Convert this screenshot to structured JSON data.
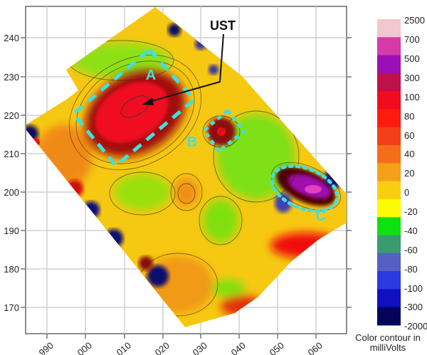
{
  "chart_data": {
    "type": "heatmap",
    "subtype": "filled contour map",
    "title": "",
    "xlabel": "",
    "ylabel": "",
    "x_ticks": [
      "990",
      "000",
      "010",
      "020",
      "030",
      "040",
      "050",
      "060"
    ],
    "y_ticks": [
      "240",
      "230",
      "220",
      "210",
      "200",
      "190",
      "180",
      "170"
    ],
    "ylim": [
      165,
      246
    ],
    "grid": true,
    "colorbar": {
      "title": "Color contour in milliVolts",
      "levels": [
        "2500",
        "700",
        "500",
        "300",
        "100",
        "80",
        "60",
        "40",
        "20",
        "0",
        "-20",
        "-40",
        "-60",
        "-80",
        "-100",
        "-300",
        "-2000"
      ],
      "colors": [
        "#f2c7d0",
        "#d63aa8",
        "#9b10b5",
        "#c0104a",
        "#f20a20",
        "#ff1a10",
        "#f4401a",
        "#f46e18",
        "#f5a018",
        "#f7cf10",
        "#fafa00",
        "#10e010",
        "#3a9a70",
        "#5560c0",
        "#2a3ae0",
        "#1010c0",
        "#04045a"
      ],
      "placement": "right"
    },
    "annotations": {
      "ust": "UST",
      "a": "A",
      "b": "B",
      "c": "C"
    },
    "anomalies": [
      {
        "label": "A",
        "type": "positive",
        "peak_mv": "100-300"
      },
      {
        "label": "B",
        "type": "positive",
        "peak_mv": "100-300"
      },
      {
        "label": "C",
        "type": "positive/negative dipole",
        "peak_mv": "500-2500"
      }
    ]
  }
}
